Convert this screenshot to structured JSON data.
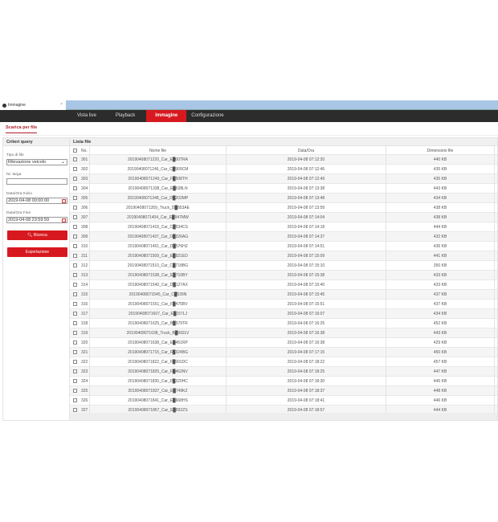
{
  "browser": {
    "tab_title": "Immagine",
    "close": "×"
  },
  "nav": [
    {
      "label": "Vista live"
    },
    {
      "label": "Playback"
    },
    {
      "label": "Immagine",
      "active": true
    },
    {
      "label": "Configurazione"
    }
  ],
  "accent": "#d7191f",
  "subtab": "Scarica per file",
  "query": {
    "header": "Criteri query",
    "file_type_label": "Tipo di file",
    "file_type_value": "Rilevazione veicolo",
    "plate_label": "Nr. targa",
    "plate_value": "",
    "start_label": "Data/Ora Inizio",
    "start_value": "2019-04-08 00:00:00",
    "end_label": "Data/Ora Fine",
    "end_value": "2019-04-08 23:59:59",
    "search_button": "Ricerca",
    "export_button": "Esportazione"
  },
  "list": {
    "header": "Lista file",
    "columns": [
      "No.",
      "Nome file",
      "Data/Ora",
      "Dimensioni file"
    ],
    "rows": [
      [
        "301",
        "20190408071220_Car_E█00TRA",
        "2019-04-08 07:12:20",
        "440 KB"
      ],
      [
        "302",
        "20190408071246_Car_C█909CM",
        "2019-04-08 07:12:46",
        "435 KB"
      ],
      [
        "303",
        "20190408071249_Car_F█508TH",
        "2019-04-08 07:12:49",
        "435 KB"
      ],
      [
        "304",
        "20190408071338_Car_E█638LN",
        "2019-04-08 07:13:38",
        "443 KB"
      ],
      [
        "305",
        "20190408071348_Car_D█202MP",
        "2019-04-08 07:13:48",
        "434 KB"
      ],
      [
        "306",
        "20190408071359_Truck_D█853AE",
        "2019-04-08 07:13:59",
        "438 KB"
      ],
      [
        "307",
        "20190408071404_Car_E█947MW",
        "2019-04-08 07:14:04",
        "438 KB"
      ],
      [
        "308",
        "20190408071418_Car_C█534CS",
        "2019-04-08 07:14:18",
        "444 KB"
      ],
      [
        "309",
        "20190408071437_Car_D█326AG",
        "2019-04-08 07:14:37",
        "432 KB"
      ],
      [
        "310",
        "20190408071451_Car_D█576HZ",
        "2019-04-08 07:14:51",
        "436 KB"
      ],
      [
        "311",
        "20190408071509_Car_E█921ED",
        "2019-04-08 07:15:09",
        "441 KB"
      ],
      [
        "312",
        "20190408071510_Car_C█718BG",
        "2019-04-08 07:15:10",
        "350 KB"
      ],
      [
        "313",
        "20190408071538_Car_E█710BY",
        "2019-04-08 07:15:38",
        "433 KB"
      ],
      [
        "314",
        "20190408071540_Car_D█127AX",
        "2019-04-08 07:15:40",
        "433 KB"
      ],
      [
        "315",
        "20190408071545_Car_C█539N",
        "2019-04-08 07:15:45",
        "437 KB"
      ],
      [
        "316",
        "20190408071551_Car_F█475BV",
        "2019-04-08 07:15:51",
        "437 KB"
      ],
      [
        "317",
        "20190408071607_Car_E█157LJ",
        "2019-04-08 07:16:07",
        "434 KB"
      ],
      [
        "318",
        "20190408071625_Car_B█579TR",
        "2019-04-08 07:16:25",
        "452 KB"
      ],
      [
        "319",
        "20190408071638_Truck_B█992LV",
        "2019-04-08 07:16:38",
        "443 KB"
      ],
      [
        "320",
        "20190408071638_Car_E█451RP",
        "2019-04-08 07:16:38",
        "429 KB"
      ],
      [
        "321",
        "20190408071715_Car_F█324BG",
        "2019-04-08 07:17:15",
        "450 KB"
      ],
      [
        "322",
        "20190408071822_Car_F█991DC",
        "2019-04-08 07:18:22",
        "457 KB"
      ],
      [
        "323",
        "20190408071825_Car_F█462NV",
        "2019-04-08 07:18:25",
        "447 KB"
      ],
      [
        "324",
        "20190408071830_Car_F█320HC",
        "2019-04-08 07:18:30",
        "445 KB"
      ],
      [
        "325",
        "20190408071837_Car_E█749KZ",
        "2019-04-08 07:18:37",
        "448 KB"
      ],
      [
        "326",
        "20190408071841_Car_E█668HS",
        "2019-04-08 07:18:41",
        "446 KB"
      ],
      [
        "327",
        "20190408071857_Car_E█832ZS",
        "2019-04-08 07:18:57",
        "444 KB"
      ]
    ]
  }
}
